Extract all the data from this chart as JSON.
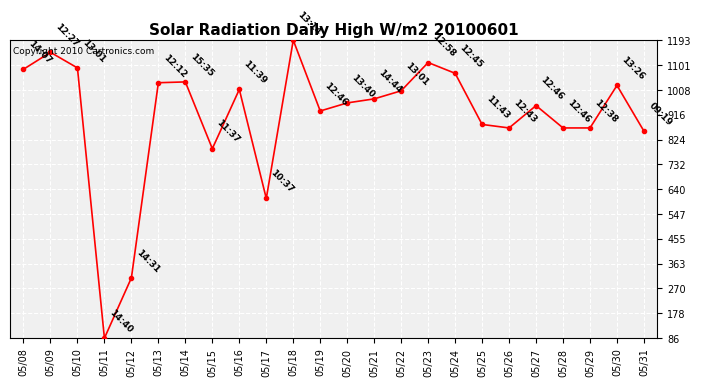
{
  "title": "Solar Radiation Daily High W/m2 20100601",
  "copyright_text": "Copyright 2010 Cartronics.com",
  "dates": [
    "05/08",
    "05/09",
    "05/10",
    "05/11",
    "05/12",
    "05/13",
    "05/14",
    "05/15",
    "05/16",
    "05/17",
    "05/18",
    "05/19",
    "05/20",
    "05/21",
    "05/22",
    "05/23",
    "05/24",
    "05/25",
    "05/26",
    "05/27",
    "05/28",
    "05/29",
    "05/30",
    "05/31"
  ],
  "values": [
    1085,
    1148,
    1090,
    86,
    310,
    1035,
    1038,
    790,
    1010,
    605,
    1193,
    930,
    960,
    975,
    1005,
    1110,
    1070,
    880,
    867,
    950,
    867,
    867,
    1025,
    855
  ],
  "times": [
    "14:07",
    "12:27",
    "13:01",
    "14:40",
    "14:31",
    "12:12",
    "15:35",
    "11:37",
    "11:39",
    "10:37",
    "13:14",
    "12:46",
    "13:40",
    "14:44",
    "13:01",
    "12:58",
    "12:45",
    "11:43",
    "12:43",
    "12:46",
    "12:46",
    "12:38",
    "13:26",
    "09:19"
  ],
  "ylim_min": 86.0,
  "ylim_max": 1193.0,
  "yticks": [
    86.0,
    178.2,
    270.5,
    362.8,
    455.0,
    547.2,
    639.5,
    731.8,
    824.0,
    916.2,
    1008.5,
    1100.8,
    1193.0
  ],
  "line_color": "red",
  "marker_color": "red",
  "bg_color": "#f0f0f0",
  "grid_color": "white",
  "title_fontsize": 11,
  "tick_fontsize": 7,
  "annotation_fontsize": 6.5
}
